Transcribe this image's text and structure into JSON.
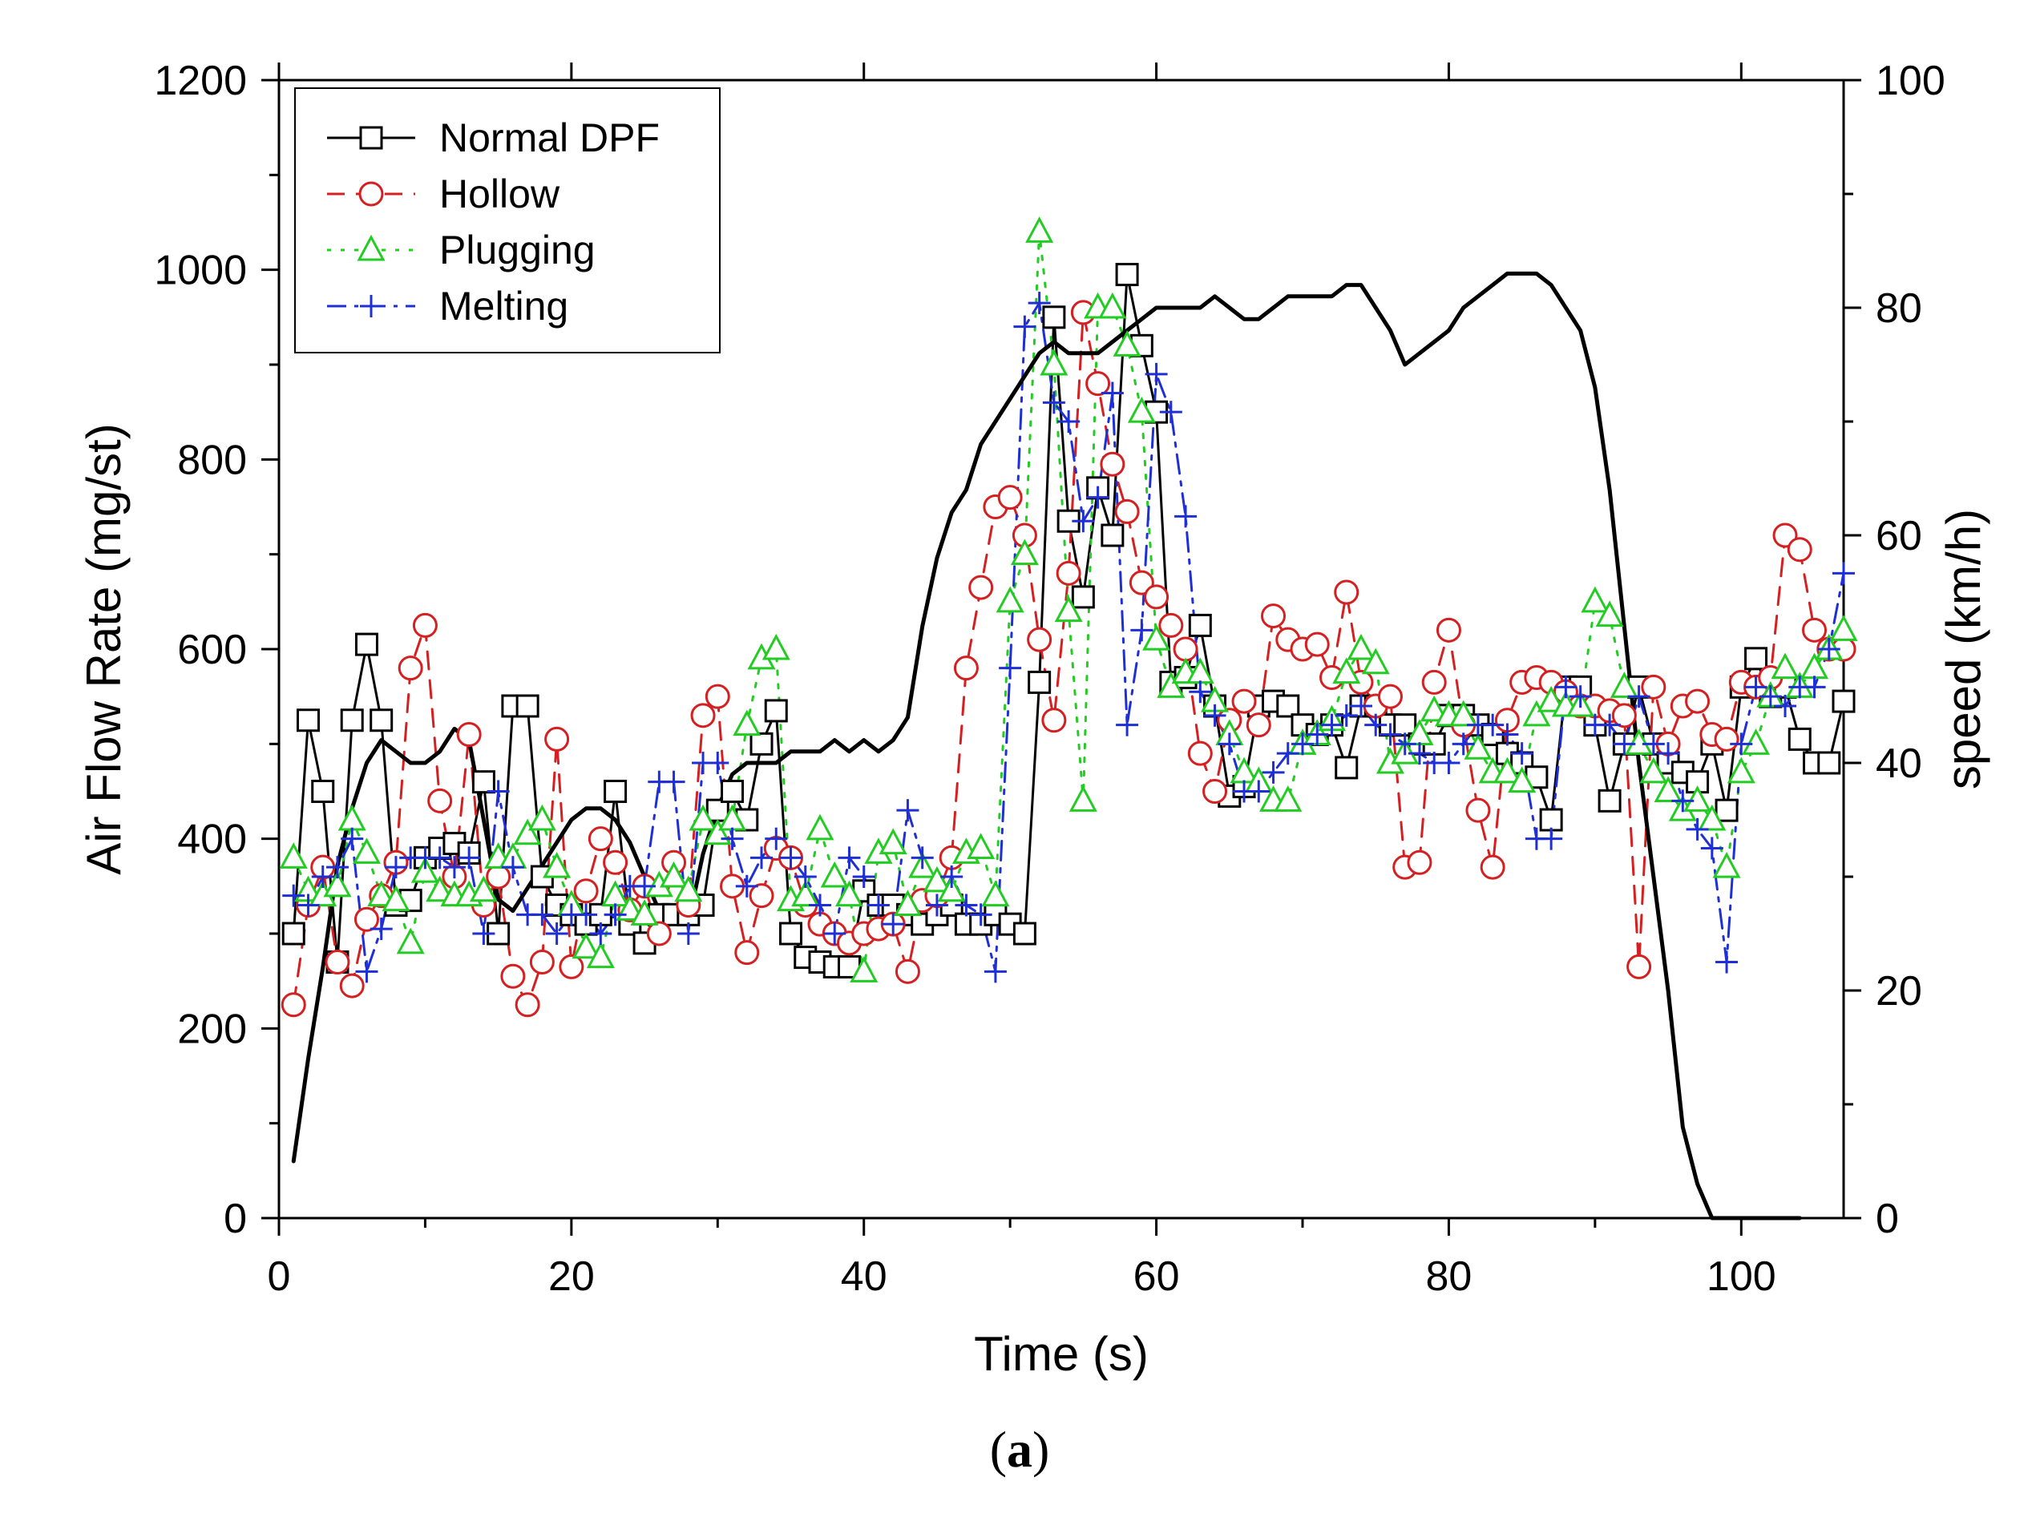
{
  "chart_data": {
    "type": "line",
    "x_label": "Time (s)",
    "y_label_left": "Air Flow Rate (mg/st)",
    "y_label_right": "speed (km/h)",
    "panel_label": {
      "open": "(",
      "letter": "a",
      "close": ")"
    },
    "xlim": [
      0,
      107
    ],
    "ylim_left": [
      0,
      1200
    ],
    "ylim_right": [
      0,
      100
    ],
    "x_ticks": [
      0,
      20,
      40,
      60,
      80,
      100
    ],
    "y_ticks_left": [
      0,
      200,
      400,
      600,
      800,
      1000,
      1200
    ],
    "y_ticks_right": [
      0,
      20,
      40,
      60,
      80,
      100
    ],
    "legend_position": "top-left",
    "series": [
      {
        "name": "Normal DPF",
        "color": "#000000",
        "dash": "solid",
        "marker": "square",
        "axis": "left",
        "x": [
          1,
          2,
          3,
          4,
          5,
          6,
          7,
          8,
          9,
          10,
          11,
          12,
          13,
          14,
          15,
          16,
          17,
          18,
          19,
          20,
          21,
          22,
          23,
          24,
          25,
          26,
          27,
          28,
          29,
          30,
          31,
          32,
          33,
          34,
          35,
          36,
          37,
          38,
          39,
          40,
          41,
          42,
          43,
          44,
          45,
          46,
          47,
          48,
          49,
          50,
          51,
          52,
          53,
          54,
          55,
          56,
          57,
          58,
          59,
          60,
          61,
          62,
          63,
          64,
          65,
          66,
          67,
          68,
          69,
          70,
          71,
          72,
          73,
          74,
          75,
          76,
          77,
          78,
          79,
          80,
          81,
          82,
          83,
          84,
          85,
          86,
          87,
          88,
          89,
          90,
          91,
          92,
          93,
          94,
          95,
          96,
          97,
          98,
          99,
          100,
          101,
          102,
          103,
          104,
          105,
          106,
          107
        ],
        "y": [
          300,
          525,
          450,
          270,
          525,
          605,
          525,
          330,
          335,
          380,
          390,
          395,
          385,
          460,
          300,
          540,
          540,
          360,
          330,
          320,
          310,
          320,
          450,
          310,
          290,
          320,
          320,
          320,
          330,
          430,
          450,
          420,
          500,
          535,
          300,
          275,
          270,
          265,
          265,
          345,
          330,
          330,
          320,
          310,
          320,
          330,
          310,
          310,
          320,
          310,
          300,
          565,
          950,
          735,
          655,
          770,
          720,
          995,
          920,
          850,
          565,
          570,
          625,
          540,
          445,
          455,
          540,
          545,
          540,
          520,
          510,
          520,
          475,
          540,
          540,
          520,
          520,
          500,
          500,
          530,
          530,
          520,
          510,
          490,
          480,
          465,
          420,
          560,
          560,
          520,
          440,
          500,
          560,
          500,
          480,
          470,
          460,
          500,
          430,
          560,
          590,
          550,
          560,
          505,
          480,
          480,
          545
        ]
      },
      {
        "name": "Hollow",
        "color": "#d42020",
        "dash": "dashed",
        "marker": "circle",
        "axis": "left",
        "x": [
          1,
          2,
          3,
          4,
          5,
          6,
          7,
          8,
          9,
          10,
          11,
          12,
          13,
          14,
          15,
          16,
          17,
          18,
          19,
          20,
          21,
          22,
          23,
          24,
          25,
          26,
          27,
          28,
          29,
          30,
          31,
          32,
          33,
          34,
          35,
          36,
          37,
          38,
          39,
          40,
          41,
          42,
          43,
          44,
          45,
          46,
          47,
          48,
          49,
          50,
          51,
          52,
          53,
          54,
          55,
          56,
          57,
          58,
          59,
          60,
          61,
          62,
          63,
          64,
          65,
          66,
          67,
          68,
          69,
          70,
          71,
          72,
          73,
          74,
          75,
          76,
          77,
          78,
          79,
          80,
          81,
          82,
          83,
          84,
          85,
          86,
          87,
          88,
          89,
          90,
          91,
          92,
          93,
          94,
          95,
          96,
          97,
          98,
          99,
          100,
          101,
          102,
          103,
          104,
          105,
          106,
          107
        ],
        "y": [
          225,
          330,
          370,
          270,
          245,
          315,
          340,
          375,
          580,
          625,
          440,
          360,
          510,
          330,
          360,
          255,
          225,
          270,
          505,
          265,
          345,
          400,
          375,
          325,
          350,
          300,
          375,
          330,
          530,
          550,
          350,
          280,
          340,
          390,
          380,
          330,
          310,
          300,
          290,
          300,
          305,
          310,
          260,
          335,
          340,
          380,
          580,
          665,
          750,
          760,
          720,
          610,
          525,
          680,
          955,
          880,
          795,
          745,
          670,
          655,
          625,
          600,
          490,
          450,
          525,
          545,
          520,
          635,
          610,
          600,
          605,
          570,
          660,
          565,
          540,
          550,
          370,
          375,
          565,
          620,
          520,
          430,
          370,
          525,
          565,
          570,
          565,
          555,
          540,
          540,
          535,
          530,
          265,
          560,
          500,
          540,
          545,
          510,
          505,
          565,
          560,
          570,
          720,
          705,
          620,
          600,
          600
        ]
      },
      {
        "name": "Plugging",
        "color": "#22cc22",
        "dash": "dotted",
        "marker": "triangle",
        "axis": "left",
        "x": [
          1,
          2,
          3,
          4,
          5,
          6,
          7,
          8,
          9,
          10,
          11,
          12,
          13,
          14,
          15,
          16,
          17,
          18,
          19,
          20,
          21,
          22,
          23,
          24,
          25,
          26,
          27,
          28,
          29,
          30,
          31,
          32,
          33,
          34,
          35,
          36,
          37,
          38,
          39,
          40,
          41,
          42,
          43,
          44,
          45,
          46,
          47,
          48,
          49,
          50,
          51,
          52,
          53,
          54,
          55,
          56,
          57,
          58,
          59,
          60,
          61,
          62,
          63,
          64,
          65,
          66,
          67,
          68,
          69,
          70,
          71,
          72,
          73,
          74,
          75,
          76,
          77,
          78,
          79,
          80,
          81,
          82,
          83,
          84,
          85,
          86,
          87,
          88,
          89,
          90,
          91,
          92,
          93,
          94,
          95,
          96,
          97,
          98,
          99,
          100,
          101,
          102,
          103,
          104,
          105,
          106,
          107
        ],
        "y": [
          380,
          345,
          340,
          350,
          420,
          385,
          340,
          335,
          290,
          365,
          345,
          340,
          340,
          345,
          380,
          380,
          405,
          420,
          370,
          330,
          285,
          275,
          340,
          325,
          320,
          350,
          360,
          345,
          420,
          405,
          420,
          520,
          590,
          600,
          335,
          340,
          410,
          360,
          340,
          260,
          385,
          395,
          330,
          370,
          355,
          345,
          385,
          390,
          340,
          650,
          700,
          1040,
          900,
          640,
          440,
          960,
          960,
          920,
          850,
          610,
          560,
          575,
          575,
          545,
          510,
          470,
          460,
          440,
          440,
          500,
          510,
          525,
          575,
          600,
          585,
          480,
          490,
          510,
          535,
          530,
          530,
          495,
          470,
          470,
          460,
          530,
          545,
          540,
          540,
          650,
          635,
          560,
          500,
          470,
          450,
          430,
          440,
          420,
          370,
          470,
          500,
          550,
          580,
          560,
          580,
          600,
          620
        ]
      },
      {
        "name": "Melting",
        "color": "#1f2fd6",
        "dash": "dashdot",
        "marker": "plus",
        "axis": "left",
        "x": [
          1,
          2,
          3,
          4,
          5,
          6,
          7,
          8,
          9,
          10,
          11,
          12,
          13,
          14,
          15,
          16,
          17,
          18,
          19,
          20,
          21,
          22,
          23,
          24,
          25,
          26,
          27,
          28,
          29,
          30,
          31,
          32,
          33,
          34,
          35,
          36,
          37,
          38,
          39,
          40,
          41,
          42,
          43,
          44,
          45,
          46,
          47,
          48,
          49,
          50,
          51,
          52,
          53,
          54,
          55,
          56,
          57,
          58,
          59,
          60,
          61,
          62,
          63,
          64,
          65,
          66,
          67,
          68,
          69,
          70,
          71,
          72,
          73,
          74,
          75,
          76,
          77,
          78,
          79,
          80,
          81,
          82,
          83,
          84,
          85,
          86,
          87,
          88,
          89,
          90,
          91,
          92,
          93,
          94,
          95,
          96,
          97,
          98,
          99,
          100,
          101,
          102,
          103,
          104,
          105,
          106,
          107
        ],
        "y": [
          340,
          330,
          360,
          370,
          400,
          260,
          305,
          370,
          380,
          380,
          380,
          370,
          380,
          300,
          450,
          370,
          320,
          320,
          300,
          320,
          320,
          300,
          320,
          350,
          350,
          460,
          460,
          300,
          480,
          480,
          400,
          350,
          380,
          400,
          380,
          360,
          330,
          300,
          380,
          360,
          330,
          310,
          430,
          380,
          330,
          360,
          330,
          320,
          260,
          580,
          940,
          965,
          860,
          840,
          735,
          760,
          870,
          520,
          620,
          890,
          850,
          740,
          555,
          530,
          500,
          450,
          450,
          470,
          490,
          500,
          510,
          520,
          530,
          540,
          520,
          510,
          500,
          490,
          480,
          480,
          500,
          520,
          520,
          510,
          490,
          400,
          400,
          560,
          550,
          520,
          520,
          500,
          550,
          500,
          490,
          440,
          410,
          390,
          270,
          500,
          560,
          550,
          540,
          560,
          560,
          600,
          680
        ]
      },
      {
        "name": "speed",
        "color": "#000000",
        "dash": "solid",
        "marker": "none",
        "axis": "right",
        "show_in_legend": false,
        "x": [
          1,
          2,
          3,
          4,
          5,
          6,
          7,
          8,
          9,
          10,
          11,
          12,
          13,
          14,
          15,
          16,
          17,
          18,
          19,
          20,
          21,
          22,
          23,
          24,
          25,
          26,
          27,
          28,
          29,
          30,
          31,
          32,
          33,
          34,
          35,
          36,
          37,
          38,
          39,
          40,
          41,
          42,
          43,
          44,
          45,
          46,
          47,
          48,
          49,
          50,
          51,
          52,
          53,
          54,
          55,
          56,
          57,
          58,
          59,
          60,
          61,
          62,
          63,
          64,
          65,
          66,
          67,
          68,
          69,
          70,
          71,
          72,
          73,
          74,
          75,
          76,
          77,
          78,
          79,
          80,
          81,
          82,
          83,
          84,
          85,
          86,
          87,
          88,
          89,
          90,
          91,
          92,
          93,
          94,
          95,
          96,
          97,
          98,
          99,
          100,
          101,
          102,
          103,
          104
        ],
        "y": [
          5,
          14,
          22,
          31,
          36,
          40,
          42,
          41,
          40,
          40,
          41,
          43,
          42,
          35,
          28,
          27,
          29,
          31,
          33,
          35,
          36,
          36,
          35,
          33,
          30,
          27,
          26,
          26,
          32,
          36,
          39,
          40,
          40,
          40,
          41,
          41,
          41,
          42,
          41,
          42,
          41,
          42,
          44,
          52,
          58,
          62,
          64,
          68,
          70,
          72,
          74,
          76,
          77,
          76,
          76,
          76,
          77,
          78,
          79,
          80,
          80,
          80,
          80,
          81,
          80,
          79,
          79,
          80,
          81,
          81,
          81,
          81,
          82,
          82,
          80,
          78,
          75,
          76,
          77,
          78,
          80,
          81,
          82,
          83,
          83,
          83,
          82,
          80,
          78,
          73,
          64,
          52,
          40,
          30,
          20,
          8,
          3,
          0,
          0,
          0,
          0,
          0,
          0,
          0
        ]
      }
    ]
  }
}
